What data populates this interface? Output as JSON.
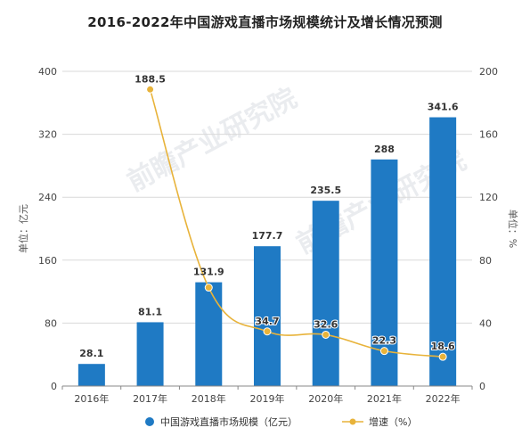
{
  "title": "2016-2022年中国游戏直播市场规模统计及增长情况预测",
  "watermark": "前瞻产业研究院",
  "colors": {
    "bar": "#1f7ac4",
    "line": "#e8b33a",
    "grid": "#d9d9d9",
    "axis": "#888888"
  },
  "chart_data": {
    "type": "bar",
    "categories": [
      "2016年",
      "2017年",
      "2018年",
      "2019年",
      "2020年",
      "2021年",
      "2022年"
    ],
    "series": [
      {
        "name": "中国游戏直播市场规模（亿元）",
        "type": "bar",
        "axis": "left",
        "values": [
          28.1,
          81.1,
          131.9,
          177.7,
          235.5,
          288,
          341.6
        ]
      },
      {
        "name": "增速（%）",
        "type": "line",
        "axis": "right",
        "values": [
          null,
          188.5,
          62.6,
          34.7,
          32.6,
          22.3,
          18.6
        ]
      }
    ],
    "ylabel": "单位：亿元",
    "y2label": "单位：%",
    "ylim": [
      0,
      400
    ],
    "y2lim": [
      0,
      200
    ],
    "yticks": [
      0,
      80,
      160,
      240,
      320,
      400
    ],
    "y2ticks": [
      0,
      40,
      80,
      120,
      160,
      200
    ],
    "bar_labels": [
      "28.1",
      "81.1",
      "131.9",
      "177.7",
      "235.5",
      "288",
      "341.6"
    ],
    "line_labels": [
      "",
      "188.5",
      "",
      "34.7",
      "32.6",
      "22.3",
      "18.6"
    ],
    "grid": true,
    "legend_position": "bottom"
  }
}
